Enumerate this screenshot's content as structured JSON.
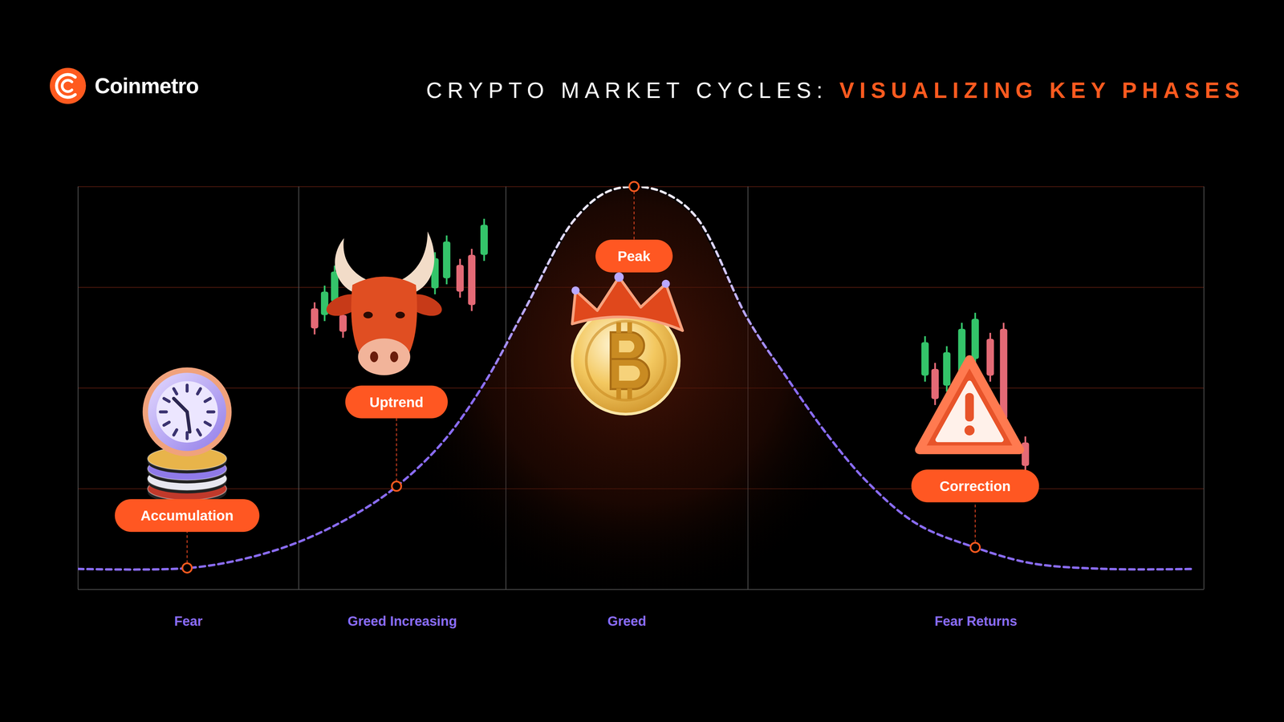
{
  "chart_data": {
    "type": "line",
    "brand": "Coinmetro",
    "title": "CRYPTO MARKET CYCLES: VISUALIZING KEY PHASES",
    "x": [
      0,
      9.7,
      14.9,
      19.6,
      24.4,
      28.3,
      32.4,
      36.0,
      39.6,
      44.0,
      46.9,
      49.4,
      52.0,
      54.9,
      59.5,
      62.9,
      66.5,
      70.2,
      74.5,
      79.7,
      84.7,
      91.3,
      99.0
    ],
    "values": [
      5.1,
      5.3,
      7.7,
      11.8,
      18.3,
      25.6,
      36.6,
      50.8,
      69.1,
      91.5,
      98.6,
      100,
      98.6,
      92.5,
      67.1,
      52.8,
      38.6,
      26.4,
      16.3,
      10.4,
      6.5,
      5.1,
      5.1
    ],
    "color": "#8a6cf5",
    "line_style": "dashed",
    "xlim": [
      0,
      100
    ],
    "ylim": [
      0,
      100
    ],
    "xticks": [
      0,
      19.6,
      38,
      59.5,
      100
    ],
    "yticks": [
      0,
      25,
      50,
      75,
      100
    ],
    "grid": true,
    "tick_labels": false,
    "phases": [
      "Fear",
      "Greed Increasing",
      "Greed",
      "Fear Returns"
    ],
    "annotations": [
      {
        "label": "Accumulation",
        "x": 9.7,
        "y": 5.3
      },
      {
        "label": "Uptrend",
        "x": 28.3,
        "y": 25.6
      },
      {
        "label": "Peak",
        "x": 49.4,
        "y": 100
      },
      {
        "label": "Correction",
        "x": 79.7,
        "y": 10.4
      }
    ]
  }
}
